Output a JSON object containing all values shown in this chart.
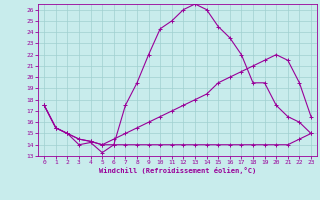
{
  "xlabel": "Windchill (Refroidissement éolien,°C)",
  "bg_color": "#c8ecec",
  "grid_color": "#a0d0d0",
  "line_color": "#990099",
  "xlim": [
    -0.5,
    23.5
  ],
  "ylim": [
    13,
    26.5
  ],
  "xticks": [
    0,
    1,
    2,
    3,
    4,
    5,
    6,
    7,
    8,
    9,
    10,
    11,
    12,
    13,
    14,
    15,
    16,
    17,
    18,
    19,
    20,
    21,
    22,
    23
  ],
  "yticks": [
    13,
    14,
    15,
    16,
    17,
    18,
    19,
    20,
    21,
    22,
    23,
    24,
    25,
    26
  ],
  "series1_x": [
    0,
    1,
    2,
    3,
    4,
    5,
    6,
    7,
    8,
    9,
    10,
    11,
    12,
    13,
    14,
    15,
    16,
    17,
    18,
    19,
    20,
    21,
    22,
    23
  ],
  "series1_y": [
    17.5,
    15.5,
    15.0,
    14.0,
    14.2,
    13.3,
    14.0,
    17.5,
    19.5,
    22.0,
    24.3,
    25.0,
    26.0,
    26.5,
    26.0,
    24.5,
    23.5,
    22.0,
    19.5,
    19.5,
    17.5,
    16.5,
    16.0,
    15.0
  ],
  "series2_x": [
    0,
    1,
    2,
    3,
    4,
    5,
    6,
    7,
    8,
    9,
    10,
    11,
    12,
    13,
    14,
    15,
    16,
    17,
    18,
    19,
    20,
    21,
    22,
    23
  ],
  "series2_y": [
    17.5,
    15.5,
    15.0,
    14.5,
    14.3,
    14.0,
    14.5,
    15.0,
    15.5,
    16.0,
    16.5,
    17.0,
    17.5,
    18.0,
    18.5,
    19.5,
    20.0,
    20.5,
    21.0,
    21.5,
    22.0,
    21.5,
    19.5,
    16.5
  ],
  "series3_x": [
    0,
    1,
    2,
    3,
    4,
    5,
    6,
    7,
    8,
    9,
    10,
    11,
    12,
    13,
    14,
    15,
    16,
    17,
    18,
    19,
    20,
    21,
    22,
    23
  ],
  "series3_y": [
    17.5,
    15.5,
    15.0,
    14.5,
    14.3,
    14.0,
    14.0,
    14.0,
    14.0,
    14.0,
    14.0,
    14.0,
    14.0,
    14.0,
    14.0,
    14.0,
    14.0,
    14.0,
    14.0,
    14.0,
    14.0,
    14.0,
    14.5,
    15.0
  ]
}
